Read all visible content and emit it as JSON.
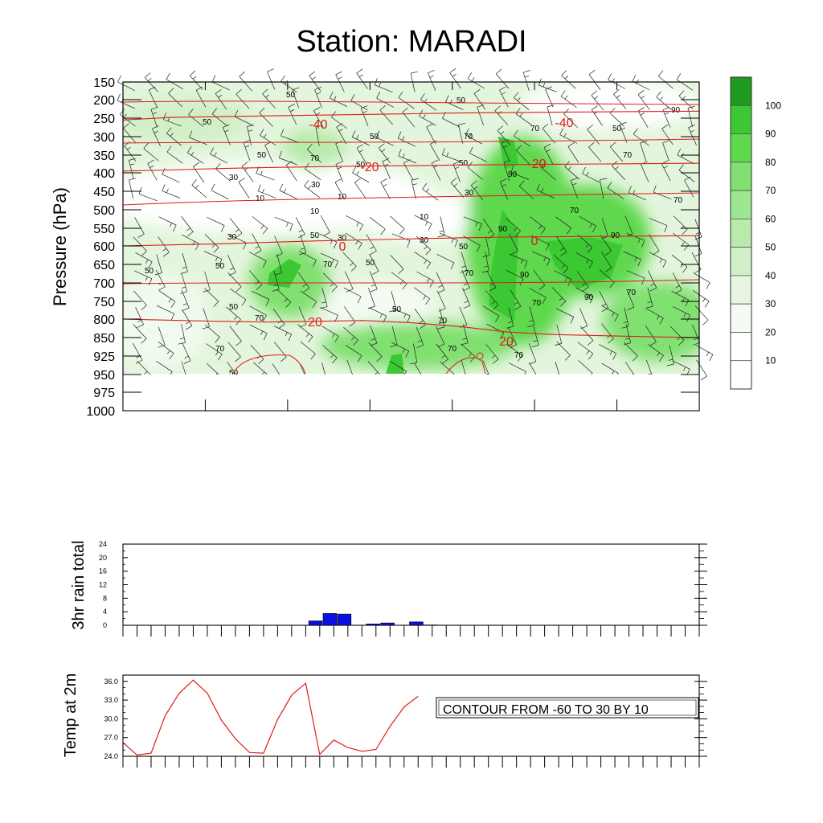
{
  "title": "Station: MARADI",
  "note": "CONTOUR FROM -60 TO 30 BY 10",
  "colors": {
    "temp_contour": "#e01b1b",
    "rain_bar": "#0a10e0",
    "temp_line": "#e01b1b",
    "green_levels": [
      "#ffffff",
      "#f4fbf2",
      "#e6f6e0",
      "#d2f0c8",
      "#b9ebac",
      "#9ee690",
      "#80e070",
      "#5fd84e",
      "#3cc833",
      "#1e9a1e"
    ]
  },
  "chart_data": [
    {
      "type": "heatmap",
      "title": "Station: MARADI",
      "ylabel": "Pressure (hPa)",
      "ytick_labels": [
        "150",
        "200",
        "250",
        "300",
        "350",
        "400",
        "450",
        "500",
        "550",
        "600",
        "650",
        "700",
        "750",
        "800",
        "850",
        "925",
        "950",
        "975",
        "1000"
      ],
      "colorbar_labels": [
        "10",
        "20",
        "30",
        "40",
        "50",
        "60",
        "70",
        "80",
        "90",
        "100"
      ],
      "humidity_contour_labels": [
        "10",
        "30",
        "50",
        "70",
        "90"
      ],
      "temperature_contour_labels": [
        "-40",
        "-20",
        "0",
        "20"
      ],
      "series": [
        {
          "name": "-40",
          "y": [
            255,
            248,
            246,
            244,
            242,
            240,
            238,
            236,
            235,
            234,
            233,
            232,
            231
          ]
        },
        {
          "name": "-20",
          "y": [
            395,
            392,
            388,
            385,
            383,
            381,
            380,
            378,
            377,
            376,
            375,
            374,
            373
          ]
        },
        {
          "name": "0",
          "y": [
            600,
            597,
            594,
            590,
            586,
            583,
            580,
            577,
            575,
            574,
            573,
            572,
            571
          ]
        },
        {
          "name": "20",
          "y": [
            800,
            803,
            806,
            808,
            806,
            804,
            810,
            820,
            835,
            842,
            845,
            848,
            850
          ]
        }
      ]
    },
    {
      "type": "bar",
      "ylabel": "3hr rain total",
      "ylim": [
        0,
        24
      ],
      "ytick_labels": [
        "0",
        "4",
        "8",
        "12",
        "16",
        "20",
        "24"
      ],
      "values": [
        0,
        0,
        0,
        0,
        0,
        0,
        0,
        0,
        0,
        0,
        0,
        0,
        0,
        1.3,
        3.5,
        3.3,
        0,
        0.4,
        0.7,
        0,
        1.0,
        0.1,
        0,
        0,
        0,
        0,
        0,
        0,
        0,
        0,
        0,
        0,
        0,
        0,
        0,
        0,
        0,
        0,
        0,
        0,
        0
      ]
    },
    {
      "type": "line",
      "ylabel": "Temp at 2m",
      "ylim": [
        24.0,
        37.0
      ],
      "ytick_labels": [
        "24.0",
        "27.0",
        "30.0",
        "33.0",
        "36.0"
      ],
      "values": [
        26.2,
        24.2,
        24.5,
        30.5,
        34.1,
        36.2,
        34.1,
        29.8,
        26.8,
        24.6,
        24.5,
        29.9,
        33.8,
        35.7,
        24.3,
        26.6,
        25.4,
        24.8,
        25.1,
        28.8,
        31.9,
        33.6
      ]
    }
  ]
}
